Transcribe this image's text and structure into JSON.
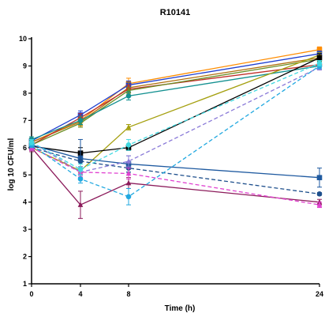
{
  "chart_data": {
    "type": "line",
    "title": "R10141",
    "xlabel": "Time (h)",
    "ylabel": "log 10 CFU/ml",
    "x": [
      0,
      4,
      8,
      24
    ],
    "x_ticks": [
      "0",
      "4",
      "8",
      "24"
    ],
    "y_ticks": [
      "1",
      "2",
      "3",
      "4",
      "5",
      "6",
      "7",
      "8",
      "9",
      "10"
    ],
    "xlim": [
      0,
      24
    ],
    "ylim": [
      1,
      10
    ],
    "x_scale": "piecewise (0–8 h expanded, 8–24 h compressed)",
    "grid": false,
    "legend": "none",
    "series": [
      {
        "color": "#ff8c00",
        "style": "solid",
        "marker": "square",
        "values": [
          6.2,
          7.0,
          8.35,
          9.6
        ],
        "err": [
          0.15,
          0.2,
          0.2,
          0.1
        ]
      },
      {
        "color": "#1f3fd0",
        "style": "solid",
        "marker": "square",
        "values": [
          6.25,
          7.2,
          8.3,
          9.45
        ],
        "err": [
          0.15,
          0.15,
          0.15,
          0.1
        ]
      },
      {
        "color": "#b07010",
        "style": "solid",
        "marker": "diamond",
        "values": [
          6.2,
          6.95,
          8.2,
          9.3
        ],
        "err": [
          0.1,
          0.2,
          0.2,
          0.1
        ]
      },
      {
        "color": "#c0302a",
        "style": "solid",
        "marker": "circle",
        "values": [
          6.1,
          7.1,
          8.15,
          9.05
        ],
        "err": [
          0.1,
          0.15,
          0.15,
          0.1
        ]
      },
      {
        "color": "#6b8e23",
        "style": "solid",
        "marker": "triangle",
        "values": [
          6.1,
          6.9,
          8.1,
          9.25
        ],
        "err": [
          0.1,
          0.15,
          0.1,
          0.1
        ]
      },
      {
        "color": "#139090",
        "style": "solid",
        "marker": "circle",
        "values": [
          6.3,
          7.0,
          7.9,
          9.0
        ],
        "err": [
          0.1,
          0.15,
          0.15,
          0.1
        ]
      },
      {
        "color": "#a5a010",
        "style": "solid",
        "marker": "triangle",
        "values": [
          6.0,
          5.15,
          6.75,
          9.4
        ],
        "err": [
          0.1,
          0.15,
          0.1,
          0.1
        ]
      },
      {
        "color": "#000000",
        "style": "solid",
        "marker": "square",
        "values": [
          6.05,
          5.8,
          6.0,
          9.3
        ],
        "err": [
          0.1,
          0.2,
          0.1,
          0.15
        ]
      },
      {
        "color": "#1f5aa0",
        "style": "solid",
        "marker": "square",
        "values": [
          6.1,
          5.6,
          5.4,
          4.9
        ],
        "err": [
          0.15,
          0.7,
          0.3,
          0.35
        ]
      },
      {
        "color": "#8b1a5a",
        "style": "solid",
        "marker": "triangle",
        "values": [
          6.0,
          3.9,
          4.7,
          4.0
        ],
        "err": [
          0.15,
          0.5,
          0.2,
          0.1
        ]
      },
      {
        "color": "#1e4f8c",
        "style": "dashed",
        "marker": "circle",
        "values": [
          6.0,
          5.5,
          5.25,
          4.3
        ],
        "err": [
          0.1,
          0.2,
          0.15,
          0.05
        ]
      },
      {
        "color": "#8a7ad8",
        "style": "dashed",
        "marker": "triangle",
        "values": [
          6.2,
          5.1,
          5.5,
          8.95
        ],
        "err": [
          0.1,
          0.2,
          0.2,
          0.1
        ]
      },
      {
        "color": "#e040d0",
        "style": "dashed",
        "marker": "triangle",
        "values": [
          6.0,
          5.1,
          5.05,
          3.9
        ],
        "err": [
          0.1,
          0.15,
          0.2,
          0.1
        ]
      },
      {
        "color": "#20a8e0",
        "style": "dashed",
        "marker": "circle",
        "values": [
          6.1,
          4.85,
          4.2,
          9.0
        ],
        "err": [
          0.1,
          0.15,
          0.3,
          0.1
        ]
      },
      {
        "color": "#40d8e0",
        "style": "dashed",
        "marker": "circle",
        "values": [
          6.2,
          5.2,
          6.1,
          9.1
        ],
        "err": [
          0.1,
          0.2,
          0.2,
          0.1
        ]
      }
    ]
  }
}
